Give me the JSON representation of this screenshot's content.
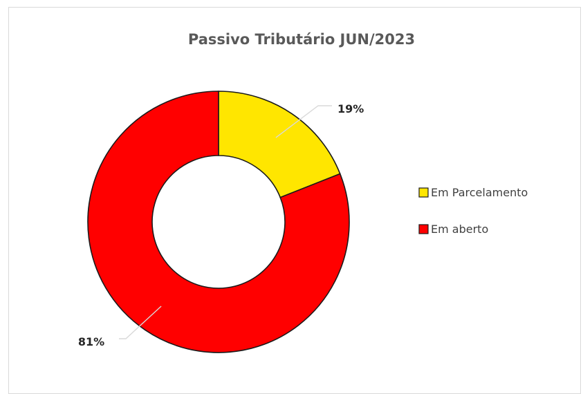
{
  "chart_data": {
    "type": "pie",
    "style": "donut",
    "title": "Passivo Tributário JUN/2023",
    "categories": [
      "Em Parcelamento",
      "Em aberto"
    ],
    "values": [
      19,
      81
    ],
    "unit": "%",
    "data_labels": [
      "19%",
      "81%"
    ],
    "colors": [
      "#ffe600",
      "#ff0000"
    ],
    "legend": {
      "position": "right",
      "entries": [
        "Em Parcelamento",
        "Em aberto"
      ]
    }
  }
}
